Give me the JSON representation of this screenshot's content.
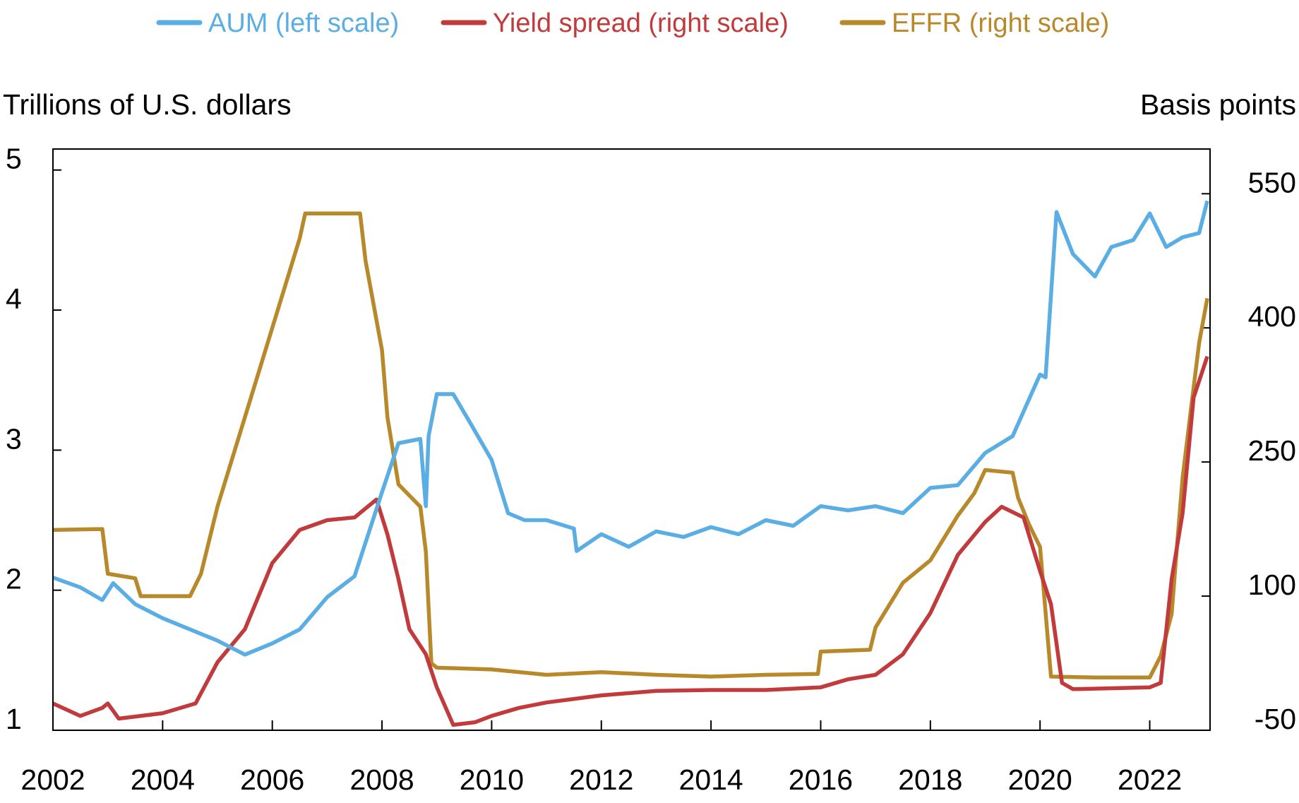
{
  "chart_data": {
    "type": "line",
    "left_axis_label": "Trillions of U.S. dollars",
    "right_axis_label": "Basis points",
    "x_ticks": [
      "2002",
      "2004",
      "2006",
      "2008",
      "2010",
      "2012",
      "2014",
      "2016",
      "2018",
      "2020",
      "2022"
    ],
    "left_ticks": [
      "1",
      "2",
      "3",
      "4",
      "5"
    ],
    "right_ticks": [
      "-50",
      "100",
      "250",
      "400",
      "550"
    ],
    "xlim": [
      2002,
      2023.1
    ],
    "left_ylim": [
      1,
      5.15
    ],
    "right_ylim": [
      -50,
      600
    ],
    "grid": false,
    "legend_placement": "top",
    "series": [
      {
        "name": "AUM (left scale)",
        "axis": "left",
        "color": "#5aaee3",
        "x": [
          2002,
          2002.5,
          2002.9,
          2003.1,
          2003.5,
          2004,
          2004.5,
          2005,
          2005.5,
          2006,
          2006.5,
          2007,
          2007.5,
          2008,
          2008.3,
          2008.7,
          2008.8,
          2008.85,
          2009.0,
          2009.3,
          2009.6,
          2010,
          2010.3,
          2010.6,
          2011,
          2011.5,
          2011.55,
          2012,
          2012.5,
          2013,
          2013.5,
          2014,
          2014.5,
          2015,
          2015.5,
          2016,
          2016.5,
          2017,
          2017.5,
          2018,
          2018.5,
          2019,
          2019.5,
          2020,
          2020.1,
          2020.3,
          2020.6,
          2021,
          2021.3,
          2021.7,
          2022,
          2022.3,
          2022.6,
          2022.9,
          2023.05
        ],
        "y": [
          2.09,
          2.02,
          1.93,
          2.05,
          1.9,
          1.8,
          1.72,
          1.64,
          1.54,
          1.62,
          1.72,
          1.95,
          2.1,
          2.7,
          3.05,
          3.08,
          2.6,
          3.1,
          3.4,
          3.4,
          3.2,
          2.93,
          2.55,
          2.5,
          2.5,
          2.44,
          2.28,
          2.4,
          2.31,
          2.42,
          2.38,
          2.45,
          2.4,
          2.5,
          2.46,
          2.6,
          2.57,
          2.6,
          2.55,
          2.73,
          2.75,
          2.98,
          3.1,
          3.54,
          3.52,
          4.7,
          4.4,
          4.24,
          4.45,
          4.5,
          4.69,
          4.45,
          4.52,
          4.55,
          4.78
        ]
      },
      {
        "name": "Yield spread (right scale)",
        "axis": "right",
        "color": "#c13b3d",
        "x": [
          2002,
          2002.5,
          2002.9,
          2003.0,
          2003.2,
          2004,
          2004.6,
          2005,
          2005.5,
          2006,
          2006.5,
          2007,
          2007.5,
          2007.9,
          2008.1,
          2008.3,
          2008.5,
          2008.8,
          2009,
          2009.3,
          2009.7,
          2010,
          2010.5,
          2011,
          2012,
          2013,
          2014,
          2015,
          2016,
          2016.5,
          2017,
          2017.5,
          2018,
          2018.5,
          2019,
          2019.3,
          2019.7,
          2020,
          2020.2,
          2020.4,
          2020.6,
          2022,
          2022.2,
          2022.4,
          2022.6,
          2022.8,
          2023.05
        ],
        "y": [
          -20,
          -34,
          -25,
          -20,
          -37,
          -31,
          -20,
          26,
          63,
          137,
          174,
          185,
          188,
          208,
          169,
          119,
          63,
          35,
          -2,
          -44,
          -41,
          -34,
          -25,
          -19,
          -11,
          -6,
          -5,
          -5,
          -2,
          7,
          12,
          35,
          81,
          146,
          183,
          200,
          188,
          128,
          91,
          3,
          -4,
          -2,
          3,
          119,
          193,
          322,
          368
        ]
      },
      {
        "name": "EFFR (right scale)",
        "axis": "right",
        "color": "#b8892b",
        "x": [
          2002,
          2002.9,
          2003.0,
          2003.5,
          2003.6,
          2004.5,
          2004.7,
          2005,
          2005.5,
          2006,
          2006.5,
          2006.6,
          2007.6,
          2007.7,
          2008,
          2008.1,
          2008.3,
          2008.7,
          2008.8,
          2008.9,
          2009,
          2010,
          2011,
          2012,
          2013,
          2014,
          2015,
          2015.95,
          2016,
          2016.9,
          2017,
          2017.25,
          2017.5,
          2018,
          2018.25,
          2018.5,
          2018.8,
          2019,
          2019.5,
          2019.6,
          2019.8,
          2020,
          2020.2,
          2021,
          2022,
          2022.2,
          2022.4,
          2022.5,
          2022.6,
          2022.75,
          2022.9,
          2023.05
        ],
        "y": [
          174,
          175,
          125,
          120,
          100,
          100,
          125,
          200,
          300,
          400,
          500,
          528,
          528,
          475,
          375,
          300,
          225,
          200,
          150,
          25,
          20,
          18,
          12,
          15,
          12,
          10,
          12,
          13,
          38,
          40,
          65,
          90,
          115,
          140,
          165,
          190,
          215,
          241,
          238,
          210,
          180,
          155,
          10,
          9,
          9,
          33,
          80,
          158,
          233,
          308,
          383,
          433
        ]
      }
    ]
  }
}
